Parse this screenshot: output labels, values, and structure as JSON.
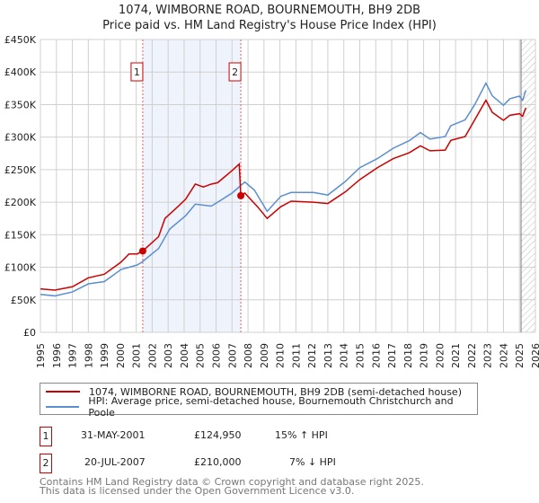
{
  "chart_data": {
    "type": "line",
    "title": "1074, WIMBORNE ROAD, BOURNEMOUTH, BH9 2DB",
    "subtitle": "Price paid vs. HM Land Registry's House Price Index (HPI)",
    "xlim": [
      1995,
      2026
    ],
    "ylim": [
      0,
      450000
    ],
    "x_ticks": [
      "1995",
      "1996",
      "1997",
      "1998",
      "1999",
      "2000",
      "2001",
      "2002",
      "2003",
      "2004",
      "2005",
      "2006",
      "2007",
      "2008",
      "2009",
      "2010",
      "2011",
      "2012",
      "2013",
      "2014",
      "2015",
      "2016",
      "2017",
      "2018",
      "2019",
      "2020",
      "2021",
      "2022",
      "2023",
      "2024",
      "2025",
      "2026"
    ],
    "y_ticks": [
      {
        "v": 0,
        "label": "£0"
      },
      {
        "v": 50000,
        "label": "£50K"
      },
      {
        "v": 100000,
        "label": "£100K"
      },
      {
        "v": 150000,
        "label": "£150K"
      },
      {
        "v": 200000,
        "label": "£200K"
      },
      {
        "v": 250000,
        "label": "£250K"
      },
      {
        "v": 300000,
        "label": "£300K"
      },
      {
        "v": 350000,
        "label": "£350K"
      },
      {
        "v": 400000,
        "label": "£400K"
      },
      {
        "v": 450000,
        "label": "£450K"
      }
    ],
    "grid": true,
    "forecast_from": 2025.1,
    "shaded_range": [
      2001.41,
      2007.55
    ],
    "series": [
      {
        "name": "1074, WIMBORNE ROAD, BOURNEMOUTH, BH9 2DB (semi-detached house)",
        "color": "#cc0000",
        "x": [
          1995.0,
          1995.9,
          1997.0,
          1998.0,
          1999.0,
          2000.05,
          2000.55,
          2001.06,
          2001.41,
          2002.4,
          2002.8,
          2003.6,
          2004.1,
          2004.7,
          2005.2,
          2005.7,
          2006.1,
          2007.0,
          2007.45,
          2007.55,
          2007.8,
          2008.6,
          2009.2,
          2010.05,
          2010.7,
          2012.1,
          2013.0,
          2014.1,
          2015.0,
          2016.1,
          2017.1,
          2018.1,
          2018.8,
          2019.4,
          2020.35,
          2020.7,
          2021.6,
          2022.2,
          2022.9,
          2023.3,
          2024.0,
          2024.4,
          2025.0,
          2025.2,
          2025.4
        ],
        "values": [
          66700,
          64900,
          70000,
          83800,
          89300,
          108000,
          120500,
          120500,
          124950,
          147000,
          175000,
          193000,
          204700,
          227800,
          223300,
          227800,
          230000,
          248500,
          258600,
          210000,
          214000,
          193000,
          175000,
          193000,
          201500,
          200000,
          198000,
          216000,
          234700,
          253000,
          267000,
          276000,
          286700,
          279000,
          280000,
          295000,
          301000,
          326600,
          356700,
          338000,
          325800,
          333600,
          336000,
          332000,
          345000
        ]
      },
      {
        "name": "HPI: Average price, semi-detached house, Bournemouth Christchurch and Poole",
        "color": "#5b8fd0",
        "x": [
          1995.0,
          1995.9,
          1997.0,
          1998.0,
          1999.0,
          2000.05,
          2001.06,
          2001.36,
          2002.4,
          2003.1,
          2004.1,
          2004.7,
          2005.7,
          2006.1,
          2007.0,
          2007.8,
          2008.4,
          2009.2,
          2010.05,
          2010.7,
          2012.1,
          2013.0,
          2014.1,
          2015.0,
          2016.1,
          2017.1,
          2018.1,
          2018.8,
          2019.4,
          2020.35,
          2020.7,
          2021.6,
          2022.2,
          2022.9,
          2023.3,
          2024.0,
          2024.4,
          2025.0,
          2025.2,
          2025.4
        ],
        "values": [
          58400,
          56000,
          62000,
          74500,
          78000,
          96600,
          103500,
          108000,
          128800,
          158700,
          179400,
          197000,
          194000,
          200000,
          214000,
          231000,
          218600,
          186000,
          209000,
          215000,
          215000,
          211000,
          232000,
          253000,
          267000,
          283000,
          294600,
          307000,
          297000,
          301000,
          317500,
          326600,
          350000,
          383000,
          363500,
          349000,
          359000,
          363000,
          356700,
          371800
        ]
      }
    ],
    "sales": [
      {
        "label": "1",
        "x": 2001.41,
        "value": 124950
      },
      {
        "label": "2",
        "x": 2007.55,
        "value": 210000
      }
    ]
  },
  "legend": {
    "items": [
      {
        "label": "1074, WIMBORNE ROAD, BOURNEMOUTH, BH9 2DB (semi-detached house)",
        "color": "#cc0000"
      },
      {
        "label": "HPI: Average price, semi-detached house, Bournemouth Christchurch and Poole",
        "color": "#5b8fd0"
      }
    ]
  },
  "transactions": [
    {
      "num": "1",
      "date": "31-MAY-2001",
      "price": "£124,950",
      "hpi": "15% ↑ HPI"
    },
    {
      "num": "2",
      "date": "20-JUL-2007",
      "price": "£210,000",
      "hpi": "7% ↓ HPI"
    }
  ],
  "footer": {
    "line1": "Contains HM Land Registry data © Crown copyright and database right 2025.",
    "line2": "This data is licensed under the Open Government Licence v3.0."
  }
}
